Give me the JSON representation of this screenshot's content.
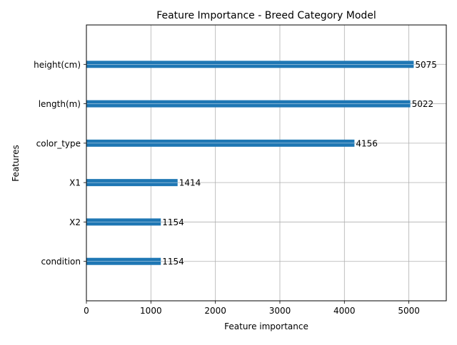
{
  "chart_data": {
    "type": "bar",
    "orientation": "horizontal",
    "title": "Feature Importance - Breed Category Model",
    "xlabel": "Feature importance",
    "ylabel": "Features",
    "categories": [
      "height(cm)",
      "length(m)",
      "color_type",
      "X1",
      "X2",
      "condition"
    ],
    "values": [
      5075,
      5022,
      4156,
      1414,
      1154,
      1154
    ],
    "data_labels": [
      "5075",
      "5022",
      "4156",
      "1414",
      "1154",
      "1154"
    ],
    "xlim": [
      0,
      5580
    ],
    "xticks": [
      0,
      1000,
      2000,
      3000,
      4000,
      5000
    ],
    "xtick_labels": [
      "0",
      "1000",
      "2000",
      "3000",
      "4000",
      "5000"
    ],
    "grid": true,
    "bar_color": "#1f77b4",
    "grid_color": "#b0b0b0"
  }
}
